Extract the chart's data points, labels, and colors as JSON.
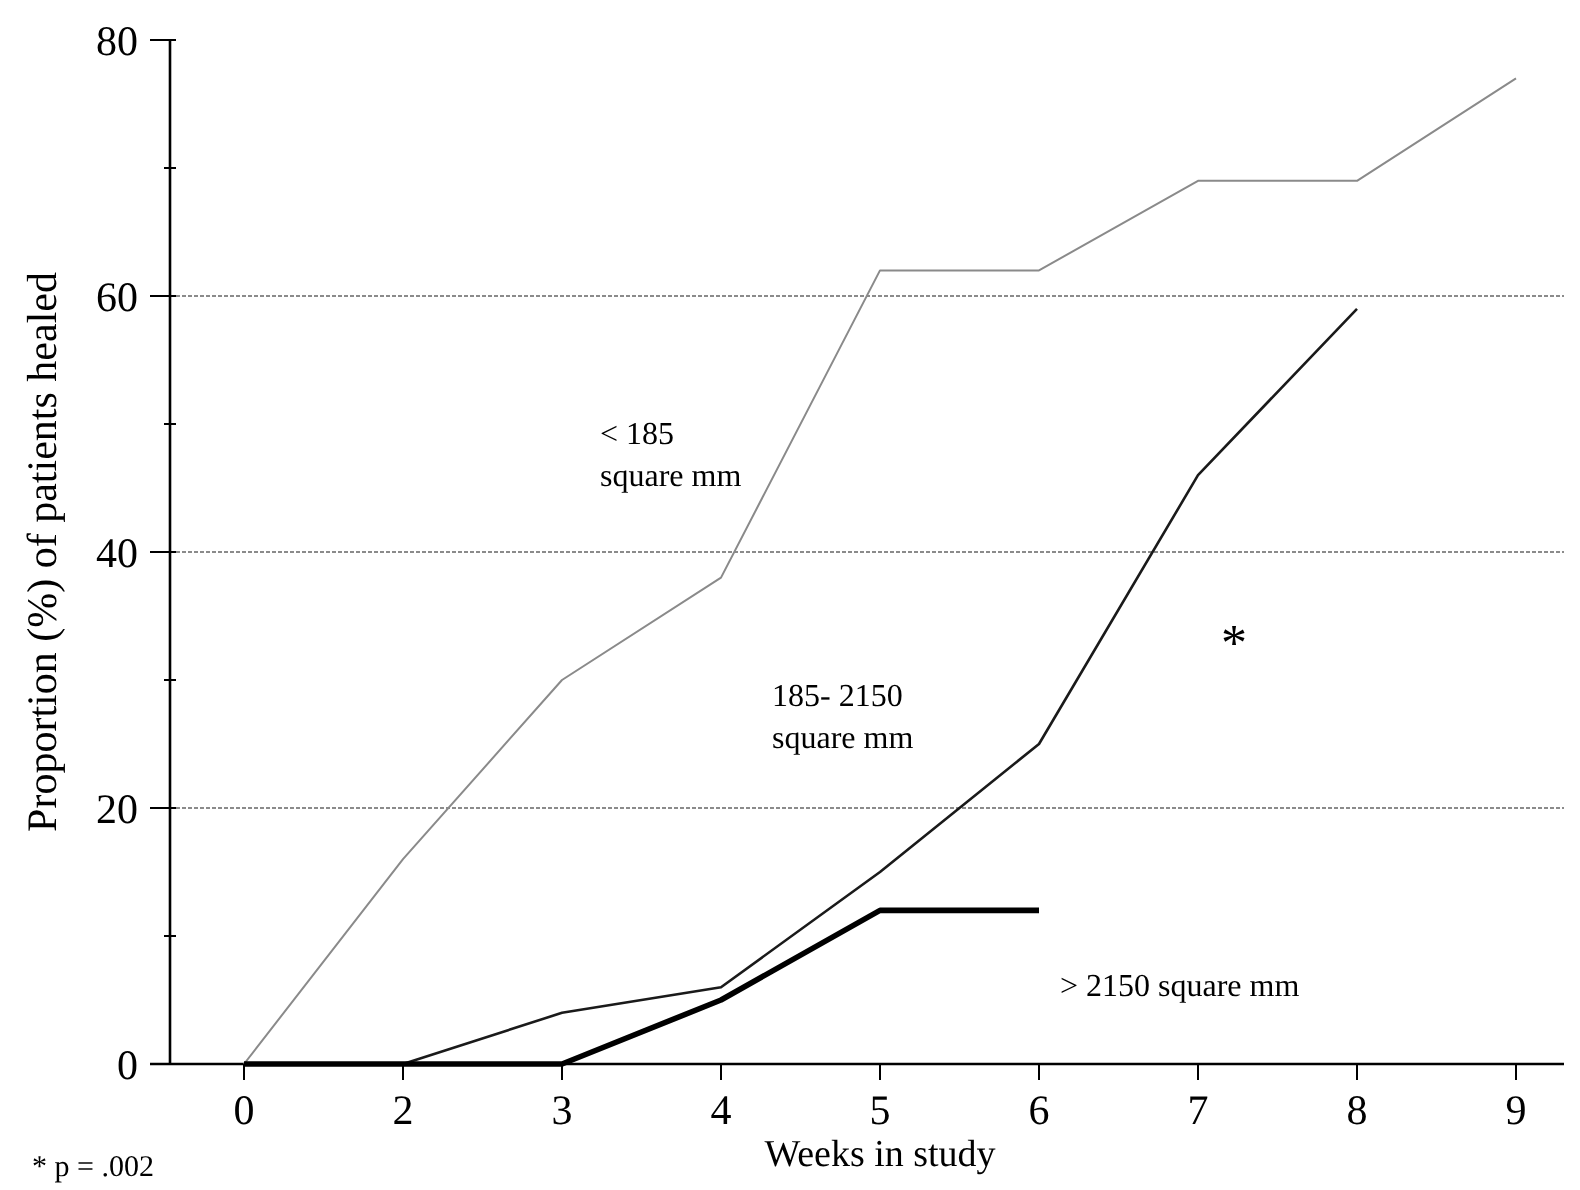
{
  "chart_data": {
    "type": "line",
    "xlabel": "Weeks in study",
    "ylabel": "Proportion  (%) of patients healed",
    "categories": [
      "0",
      "2",
      "3",
      "4",
      "5",
      "6",
      "7",
      "8",
      "9"
    ],
    "series": [
      {
        "name": "< 185 square mm",
        "color": "#8a8a8a",
        "values": [
          0,
          16,
          30,
          38,
          62,
          62,
          69,
          69,
          77
        ]
      },
      {
        "name": "185- 2150 square mm",
        "color": "#1a1a1a",
        "values": [
          0,
          0,
          4,
          6,
          15,
          25,
          46,
          59,
          null
        ]
      },
      {
        "name": "> 2150 square mm",
        "color": "#000000",
        "values": [
          0,
          0,
          0,
          5,
          12,
          12,
          null,
          null,
          null
        ]
      }
    ],
    "ylim": [
      0,
      80
    ],
    "yticks": [
      0,
      {
        "value": 10,
        "label": null
      },
      20,
      {
        "value": 30,
        "label": null
      },
      40,
      {
        "value": 50,
        "label": null
      },
      60,
      {
        "value": 70,
        "label": null
      },
      80
    ],
    "grid": "y",
    "marker": "none",
    "line_style": "solid",
    "annotations": [
      "*",
      "* p = .002"
    ]
  }
}
